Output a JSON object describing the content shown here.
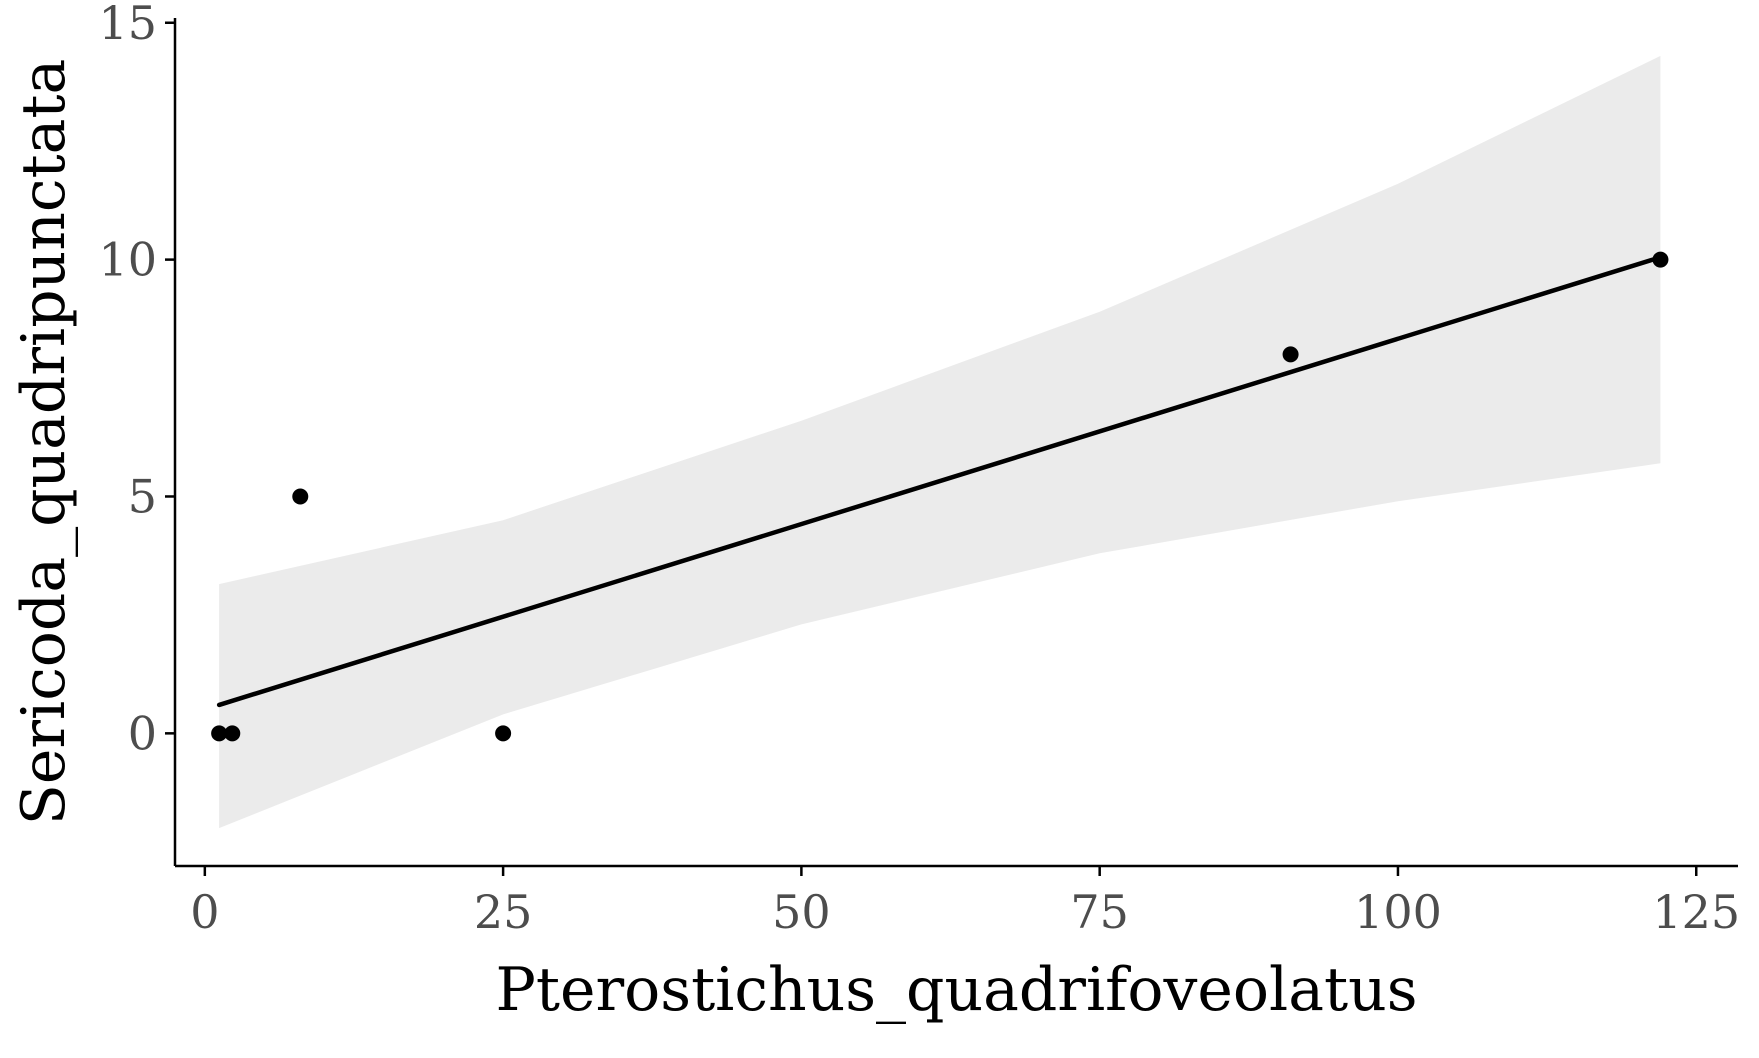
{
  "chart_data": {
    "type": "scatter",
    "title": "",
    "xlabel": "Pterostichus_quadrifoveolatus",
    "ylabel": "Sericoda_quadripunctata",
    "xlim": [
      -2.5,
      128.5
    ],
    "ylim": [
      -2.8,
      15.1
    ],
    "x_ticks": [
      0,
      25,
      50,
      75,
      100,
      125
    ],
    "y_ticks": [
      0,
      5,
      10,
      15
    ],
    "x_tick_labels": [
      "0",
      "25",
      "50",
      "75",
      "100",
      "125"
    ],
    "y_tick_labels": [
      "0",
      "5",
      "10",
      "15"
    ],
    "grid": false,
    "legend": "none",
    "points": [
      {
        "x": 1.2,
        "y": 0
      },
      {
        "x": 2.3,
        "y": 0
      },
      {
        "x": 8,
        "y": 5
      },
      {
        "x": 25,
        "y": 0
      },
      {
        "x": 91,
        "y": 8
      },
      {
        "x": 122,
        "y": 10
      }
    ],
    "fit": {
      "method": "linear",
      "x_start": 1.2,
      "x_end": 122,
      "y_start": 0.6,
      "y_end": 10.05
    },
    "confidence_band": {
      "x": [
        1.2,
        25,
        50,
        75,
        100,
        122
      ],
      "lower": [
        -2.0,
        0.4,
        2.3,
        3.8,
        4.9,
        5.7
      ],
      "upper": [
        3.15,
        4.5,
        6.6,
        8.9,
        11.6,
        14.3
      ]
    },
    "colors": {
      "points": "#000000",
      "fit_line": "#000000",
      "band": "#ebebeb",
      "axis": "#000000",
      "tick_label": "#4d4d4d"
    }
  }
}
